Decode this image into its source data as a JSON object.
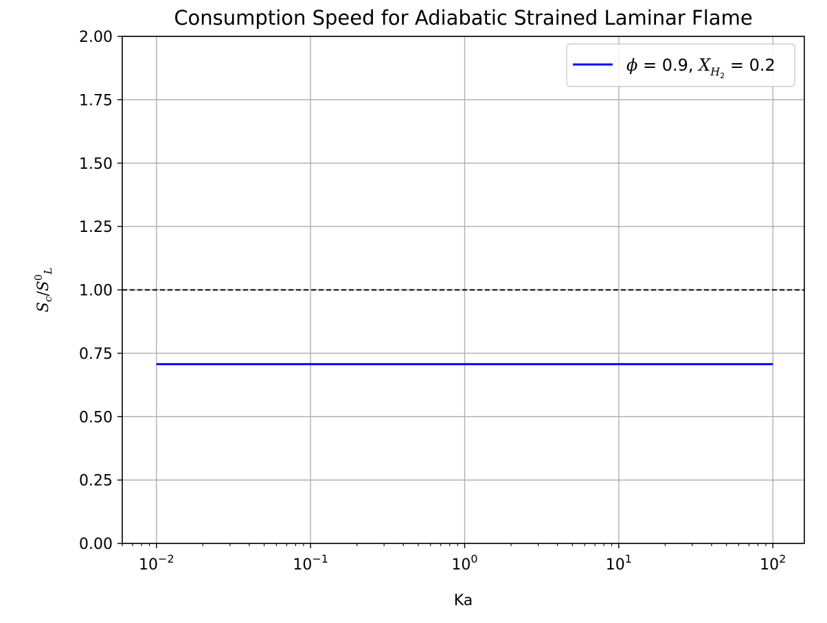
{
  "chart_data": {
    "type": "line",
    "title": "Consumption Speed for Adiabatic Strained Laminar Flame",
    "xlabel": "Ka",
    "ylabel": {
      "main": "S",
      "sub": "c",
      "slash": "/",
      "main2": "S",
      "sup2": "0",
      "sub2": "L"
    },
    "x_scale": "log",
    "xlim": [
      0.006,
      160
    ],
    "ylim": [
      0.0,
      2.0
    ],
    "x_ticks": [
      {
        "value": 0.01,
        "base": "10",
        "exp": "−2"
      },
      {
        "value": 0.1,
        "base": "10",
        "exp": "−1"
      },
      {
        "value": 1,
        "base": "10",
        "exp": "0"
      },
      {
        "value": 10,
        "base": "10",
        "exp": "1"
      },
      {
        "value": 100,
        "base": "10",
        "exp": "2"
      }
    ],
    "y_ticks": [
      {
        "value": 0.0,
        "label": "0.00"
      },
      {
        "value": 0.25,
        "label": "0.25"
      },
      {
        "value": 0.5,
        "label": "0.50"
      },
      {
        "value": 0.75,
        "label": "0.75"
      },
      {
        "value": 1.0,
        "label": "1.00"
      },
      {
        "value": 1.25,
        "label": "1.25"
      },
      {
        "value": 1.5,
        "label": "1.50"
      },
      {
        "value": 1.75,
        "label": "1.75"
      },
      {
        "value": 2.0,
        "label": "2.00"
      }
    ],
    "grid": true,
    "legend_position": "top-right",
    "series": [
      {
        "legend": {
          "phi": "ϕ",
          "eq1": " = 0.9, ",
          "x": "X",
          "sub_h": "H",
          "sub_sub": "2",
          "eq2": " = 0.2"
        },
        "color": "#0000ff",
        "x": [
          0.01,
          100
        ],
        "y": [
          0.707,
          0.707
        ]
      }
    ],
    "reference_lines": [
      {
        "y": 1.0,
        "style": "dashed",
        "color": "#000000"
      }
    ]
  }
}
